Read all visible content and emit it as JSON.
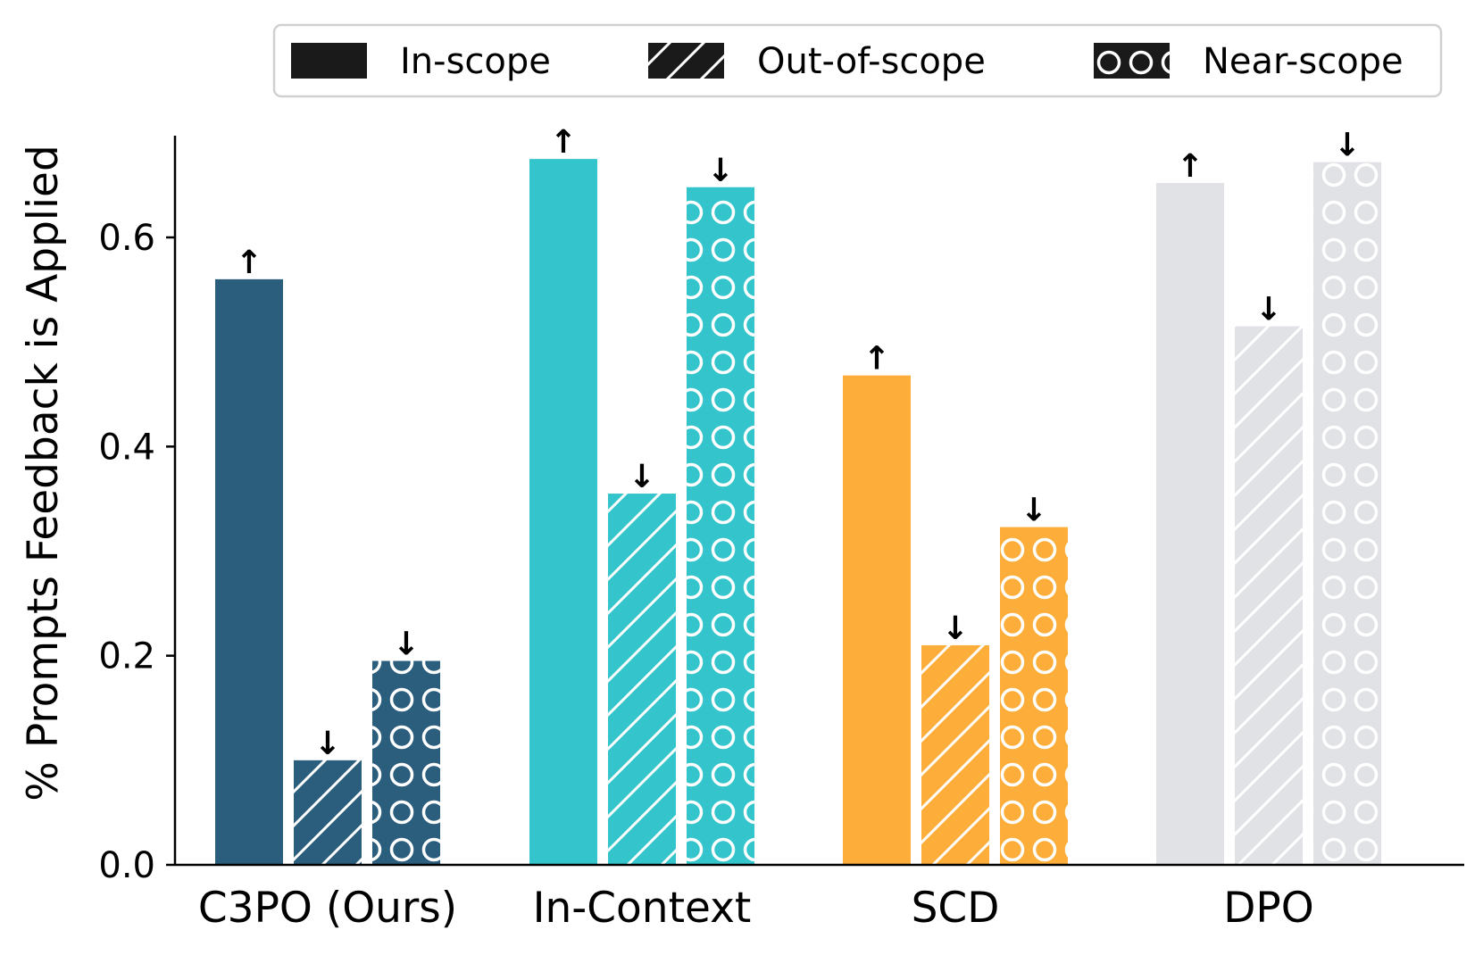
{
  "chart_data": {
    "type": "bar",
    "title": "",
    "xlabel": "",
    "ylabel": "% Prompts Feedback is Applied",
    "ylim": [
      0,
      0.7
    ],
    "yticks": [
      0.0,
      0.2,
      0.4,
      0.6
    ],
    "ytick_labels": [
      "0.0",
      "0.2",
      "0.4",
      "0.6"
    ],
    "categories": [
      "C3PO (Ours)",
      "In-Context",
      "SCD",
      "DPO"
    ],
    "category_colors": [
      "#2b5d7d",
      "#33c5cb",
      "#fdae3a",
      "#e1e2e6"
    ],
    "legend_position": "top-right",
    "series": [
      {
        "name": "In-scope",
        "pattern": "solid",
        "values": [
          0.56,
          0.675,
          0.468,
          0.652
        ],
        "arrows": [
          "↑",
          "↑",
          "↑",
          "↑"
        ]
      },
      {
        "name": "Out-of-scope",
        "pattern": "hatch",
        "values": [
          0.1,
          0.355,
          0.21,
          0.515
        ],
        "arrows": [
          "↓",
          "↓",
          "↓",
          "↓"
        ]
      },
      {
        "name": "Near-scope",
        "pattern": "circles",
        "values": [
          0.195,
          0.648,
          0.323,
          0.672
        ],
        "arrows": [
          "↓",
          "↓",
          "↓",
          "↓"
        ]
      }
    ],
    "legend_swatch_color": "#1a1a1a"
  }
}
